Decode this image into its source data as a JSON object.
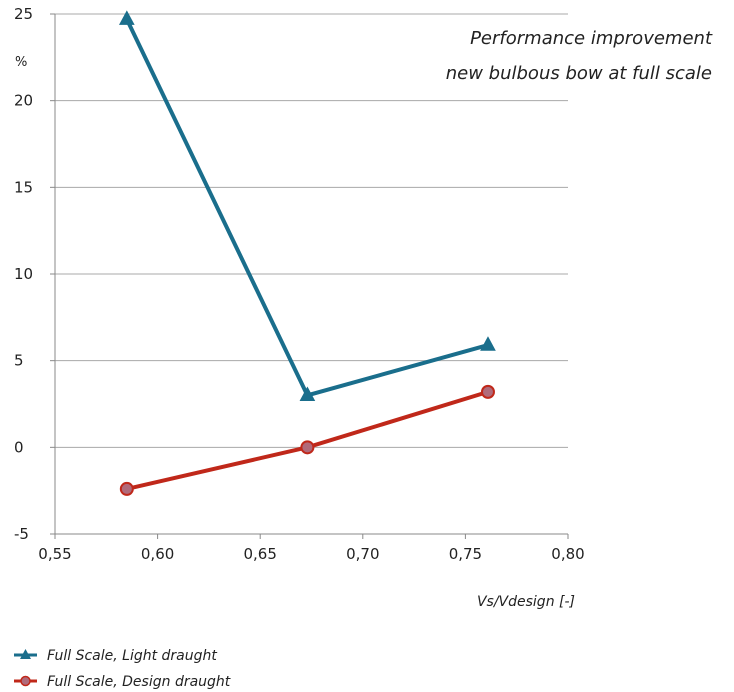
{
  "chart_data": {
    "type": "line",
    "title_lines": [
      "Performance improvement",
      "new bulbous bow at full scale"
    ],
    "xlabel": "Vs/Vdesign [-]",
    "ylabel": "%",
    "xlim": [
      0.55,
      0.8
    ],
    "ylim": [
      -5,
      25
    ],
    "x_ticks": [
      0.55,
      0.6,
      0.65,
      0.7,
      0.75,
      0.8
    ],
    "x_tick_labels": [
      "0,55",
      "0,60",
      "0,65",
      "0,70",
      "0,75",
      "0,80"
    ],
    "y_ticks": [
      -5,
      0,
      5,
      10,
      15,
      20,
      25
    ],
    "y_tick_labels": [
      "-5",
      "0",
      "5",
      "10",
      "15",
      "20",
      "25"
    ],
    "grid": "horizontal",
    "legend_position": "bottom-left",
    "series": [
      {
        "name": "Full Scale, Light draught",
        "color": "#1a6e8c",
        "marker": "triangle",
        "x": [
          0.585,
          0.673,
          0.761
        ],
        "y": [
          24.7,
          3.0,
          5.9
        ]
      },
      {
        "name": "Full Scale, Design draught",
        "color": "#c0281a",
        "marker_fill": "#b06a7a",
        "marker": "circle",
        "x": [
          0.585,
          0.673,
          0.761
        ],
        "y": [
          -2.4,
          0.0,
          3.2
        ]
      }
    ]
  }
}
